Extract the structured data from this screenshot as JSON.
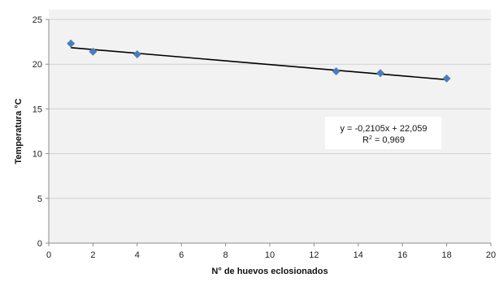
{
  "chart_data": {
    "type": "scatter",
    "title": "",
    "xlabel": "N° de huevos eclosionados",
    "ylabel": "Temperatura °C",
    "xlim": [
      0,
      20
    ],
    "ylim": [
      0,
      25
    ],
    "xticks": [
      0,
      2,
      4,
      6,
      8,
      10,
      12,
      14,
      16,
      18,
      20
    ],
    "yticks": [
      0,
      5,
      10,
      15,
      20,
      25
    ],
    "grid": "horizontal",
    "legend": "none",
    "series": [
      {
        "marker": "diamond",
        "color": "#4a7ebb",
        "points": [
          {
            "x": 1,
            "y": 22.3
          },
          {
            "x": 2,
            "y": 21.4
          },
          {
            "x": 4,
            "y": 21.1
          },
          {
            "x": 13,
            "y": 19.2
          },
          {
            "x": 15,
            "y": 19.0
          },
          {
            "x": 18,
            "y": 18.4
          }
        ]
      }
    ],
    "trendline": {
      "type": "linear",
      "slope": -0.2105,
      "intercept": 22.059,
      "x_range": [
        1,
        18
      ],
      "color": "#000000"
    },
    "annotation": {
      "equation": "y = -0,2105x + 22,059",
      "r2_label": "R",
      "r2_exponent": "2",
      "r2_value": " = 0,969"
    }
  }
}
